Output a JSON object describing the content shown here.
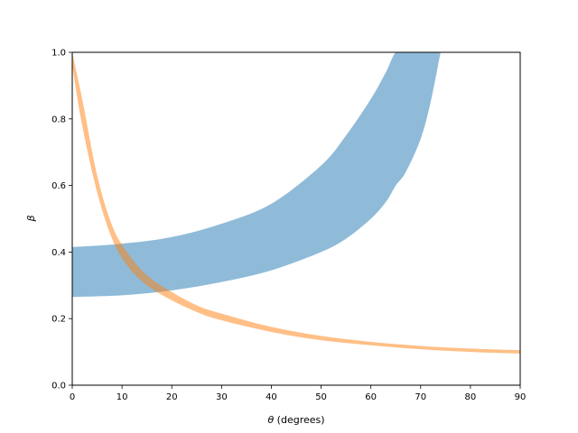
{
  "chart_data": {
    "type": "area",
    "title": "",
    "xlabel_symbol": "θ",
    "xlabel_suffix": " (degrees)",
    "ylabel": "β",
    "xlim": [
      0,
      90
    ],
    "ylim": [
      0,
      1.0
    ],
    "grid": false,
    "legend": "none",
    "x_ticks": [
      0,
      10,
      20,
      30,
      40,
      50,
      60,
      70,
      80,
      90
    ],
    "x_tick_labels": [
      "0",
      "10",
      "20",
      "30",
      "40",
      "50",
      "60",
      "70",
      "80",
      "90"
    ],
    "y_ticks": [
      0.0,
      0.2,
      0.4,
      0.6,
      0.8,
      1.0
    ],
    "y_tick_labels": [
      "0.0",
      "0.2",
      "0.4",
      "0.6",
      "0.8",
      "1.0"
    ],
    "series": [
      {
        "color": "#1f77b4",
        "opacity": 0.5,
        "x": [
          0,
          10,
          20,
          30,
          40,
          50,
          55,
          60,
          63,
          65,
          67,
          70,
          72,
          74
        ],
        "lower": [
          0.265,
          0.27,
          0.285,
          0.31,
          0.345,
          0.4,
          0.44,
          0.5,
          0.55,
          0.6,
          0.64,
          0.74,
          0.85,
          1.0
        ],
        "upper": [
          0.415,
          0.425,
          0.445,
          0.485,
          0.545,
          0.66,
          0.75,
          0.86,
          0.94,
          1.0,
          1.0,
          1.0,
          1.0,
          1.0
        ]
      },
      {
        "color": "#ff7f0e",
        "opacity": 0.5,
        "x": [
          0,
          2,
          5,
          8,
          11,
          15,
          20,
          25,
          30,
          40,
          50,
          60,
          70,
          80,
          90
        ],
        "lower": [
          0.96,
          0.78,
          0.58,
          0.44,
          0.36,
          0.3,
          0.255,
          0.22,
          0.195,
          0.16,
          0.135,
          0.12,
          0.108,
          0.1,
          0.095
        ],
        "upper": [
          1.0,
          0.86,
          0.63,
          0.48,
          0.4,
          0.33,
          0.28,
          0.24,
          0.215,
          0.175,
          0.148,
          0.13,
          0.118,
          0.11,
          0.105
        ]
      }
    ]
  }
}
